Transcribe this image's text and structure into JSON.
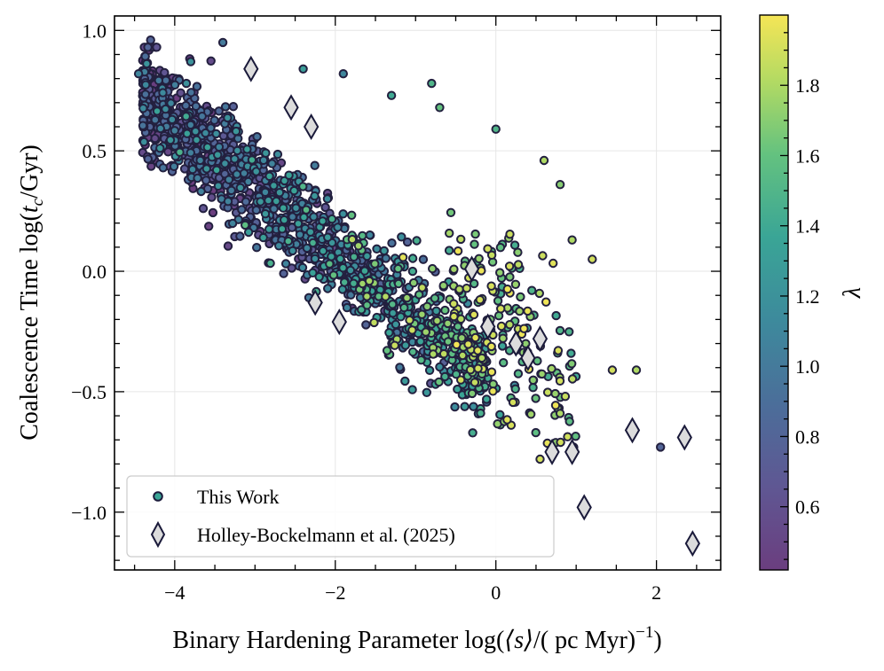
{
  "chart_data": {
    "type": "scatter",
    "title": "",
    "xlabel_text": "Binary Hardening Parameter log(",
    "xlabel_symbol": "⟨s⟩",
    "xlabel_tail": "/( pc Myr)",
    "xlabel_sup": "−1",
    "xlabel_close": ")",
    "ylabel_text": "Coalescence Time log(",
    "ylabel_sym": "t",
    "ylabel_sub": "c",
    "ylabel_tail": "/Gyr)",
    "colorbar_label": "λ",
    "xlim": [
      -4.75,
      2.8
    ],
    "ylim": [
      -1.24,
      1.06
    ],
    "clim": [
      0.42,
      2.0
    ],
    "x_ticks": [
      -4,
      -2,
      0,
      2
    ],
    "x_tick_labels": [
      "−4",
      "−2",
      "0",
      "2"
    ],
    "y_ticks": [
      -1.0,
      -0.5,
      0.0,
      0.5,
      1.0
    ],
    "y_tick_labels": [
      "−1.0",
      "−0.5",
      "0.0",
      "0.5",
      "1.0"
    ],
    "colorbar_ticks": [
      0.6,
      0.8,
      1.0,
      1.2,
      1.4,
      1.6,
      1.8
    ],
    "colorbar_tick_labels": [
      "0.6",
      "0.8",
      "1.0",
      "1.2",
      "1.4",
      "1.6",
      "1.8"
    ],
    "grid": true,
    "legend_position": "lower-left",
    "series": [
      {
        "name": "This Work",
        "marker": "circle",
        "color_by": "λ",
        "sample_points": [
          {
            "x": -4.3,
            "y": 0.96,
            "c": 0.8
          },
          {
            "x": -4.45,
            "y": 0.82,
            "c": 1.1
          },
          {
            "x": -3.8,
            "y": 0.87,
            "c": 1.2
          },
          {
            "x": -3.4,
            "y": 0.95,
            "c": 1.0
          },
          {
            "x": -2.4,
            "y": 0.84,
            "c": 1.3
          },
          {
            "x": -1.9,
            "y": 0.82,
            "c": 1.1
          },
          {
            "x": -1.3,
            "y": 0.73,
            "c": 1.4
          },
          {
            "x": -0.8,
            "y": 0.78,
            "c": 1.5
          },
          {
            "x": -0.7,
            "y": 0.68,
            "c": 1.6
          },
          {
            "x": 0.0,
            "y": 0.59,
            "c": 1.5
          },
          {
            "x": 0.6,
            "y": 0.46,
            "c": 1.8
          },
          {
            "x": 0.8,
            "y": 0.36,
            "c": 1.7
          },
          {
            "x": 0.95,
            "y": 0.13,
            "c": 1.8
          },
          {
            "x": 1.2,
            "y": 0.05,
            "c": 1.9
          },
          {
            "x": 1.45,
            "y": -0.41,
            "c": 1.9
          },
          {
            "x": 1.75,
            "y": -0.41,
            "c": 1.8
          },
          {
            "x": 2.05,
            "y": -0.73,
            "c": 0.8
          },
          {
            "x": 0.55,
            "y": -0.78,
            "c": 1.9
          },
          {
            "x": 0.8,
            "y": -0.59,
            "c": 1.8
          },
          {
            "x": -0.4,
            "y": -0.27,
            "c": 1.7
          }
        ]
      },
      {
        "name": "Holley-Bockelmann et al. (2025)",
        "marker": "diamond",
        "color": "#dcdcdc",
        "x": [
          -3.05,
          -2.55,
          -2.3,
          -2.25,
          -1.95,
          -0.3,
          -0.1,
          0.25,
          0.4,
          0.55,
          0.7,
          0.95,
          1.1,
          1.7,
          2.35,
          2.45
        ],
        "y": [
          0.84,
          0.68,
          0.6,
          -0.13,
          -0.21,
          0.01,
          -0.23,
          -0.3,
          -0.36,
          -0.28,
          -0.75,
          -0.75,
          -0.98,
          -0.66,
          -0.69,
          -1.13
        ]
      }
    ]
  },
  "legend": {
    "this_work": "This Work",
    "holley": "Holley-Bockelmann et al. (2025)"
  }
}
